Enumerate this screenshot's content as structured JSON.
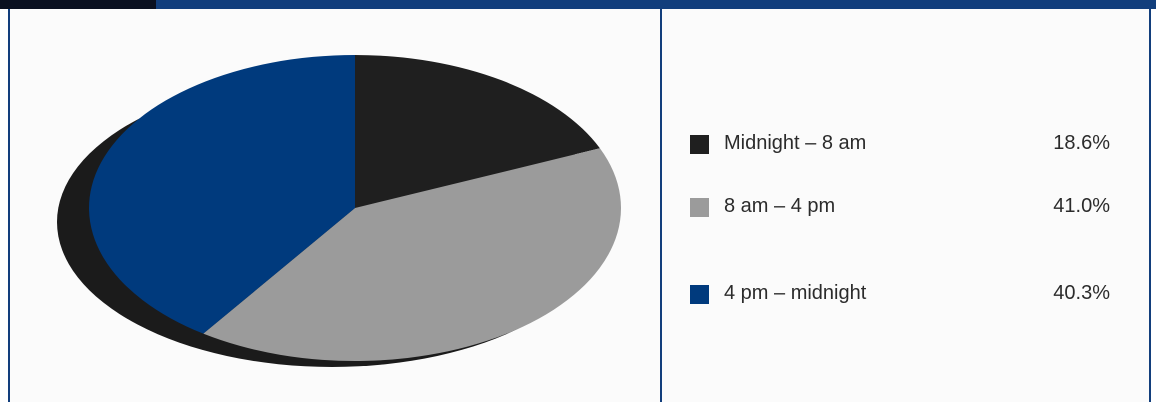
{
  "colors": {
    "frame": "#123e7c",
    "shadow": "#1b1b1b"
  },
  "chart_data": {
    "type": "pie",
    "title": "",
    "slices": [
      {
        "label": "Midnight – 8 am",
        "value_text": "18.6%",
        "value": 18.6,
        "color": "#1f1f1f"
      },
      {
        "label": "8 am – 4 pm",
        "value_text": "41.0%",
        "value": 41.0,
        "color": "#9b9b9b"
      },
      {
        "label": "4 pm – midnight",
        "value_text": "40.3%",
        "value": 40.3,
        "color": "#003a7d"
      }
    ],
    "start_angle_deg": -90,
    "direction": "clockwise",
    "legend_position": "right"
  }
}
